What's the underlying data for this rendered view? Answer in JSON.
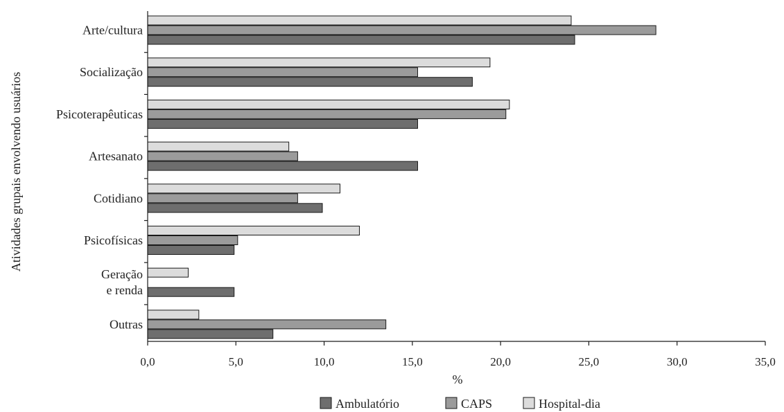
{
  "chart_data": {
    "type": "bar",
    "orientation": "horizontal",
    "title": "",
    "xlabel": "%",
    "ylabel": "Atividades grupais envolvendo usuários",
    "xlim": [
      0,
      35
    ],
    "xticks": [
      0,
      5,
      10,
      15,
      20,
      25,
      30,
      35
    ],
    "xtick_labels": [
      "0,0",
      "5,0",
      "10,0",
      "15,0",
      "20,0",
      "25,0",
      "30,0",
      "35,0"
    ],
    "grid": false,
    "legend_position": "bottom",
    "categories": [
      [
        "Arte/cultura"
      ],
      [
        "Socialização"
      ],
      [
        "Psicoterapêuticas"
      ],
      [
        "Artesanato"
      ],
      [
        "Cotidiano"
      ],
      [
        "Psicofísicas"
      ],
      [
        "Geração",
        "e renda"
      ],
      [
        "Outras"
      ]
    ],
    "series": [
      {
        "name": "Hospital-dia",
        "color": "#dcdcdc",
        "values": [
          24.0,
          19.4,
          20.5,
          8.0,
          10.9,
          12.0,
          2.3,
          2.9
        ]
      },
      {
        "name": "CAPS",
        "color": "#9b9b9b",
        "values": [
          28.8,
          15.3,
          20.3,
          8.5,
          8.5,
          5.1,
          0,
          13.5
        ]
      },
      {
        "name": "Ambulatório",
        "color": "#6e6e6e",
        "values": [
          24.2,
          18.4,
          15.3,
          15.3,
          9.9,
          4.9,
          4.9,
          7.1
        ]
      }
    ],
    "legend_order": [
      "Ambulatório",
      "CAPS",
      "Hospital-dia"
    ]
  }
}
